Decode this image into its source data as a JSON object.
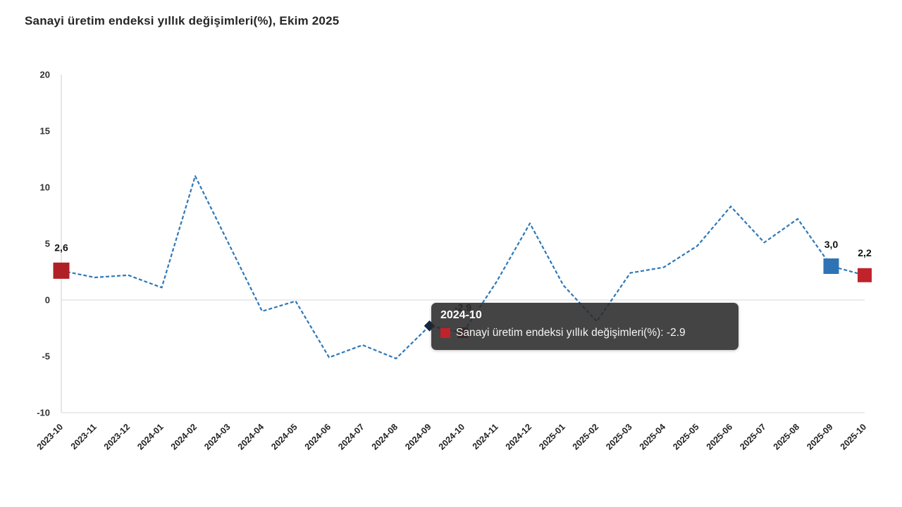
{
  "page": {
    "title": "Sanayi üretim endeksi yıllık değişimleri(%), Ekim 2025"
  },
  "colors": {
    "line_blue": "#2e78b8",
    "marker_blue": "#2e74b5",
    "marker_red": "#b02127",
    "marker_red_bright": "#c0232c",
    "marker_navy": "#16293f",
    "axis_gray": "#cccccc",
    "grid_gray": "#e0e0e0",
    "label_dark": "#111111",
    "tooltip_bg": "#2a2a2a"
  },
  "tooltip": {
    "header": "2024-10",
    "series_label": "Sanayi üretim endeksi yıllık değişimleri(%)",
    "separator": ": ",
    "value": "-2.9",
    "swatch_color": "#c0232c"
  },
  "chart_data": {
    "type": "line",
    "title": "Sanayi üretim endeksi yıllık değişimleri(%), Ekim 2025",
    "series_name": "Sanayi üretim endeksi yıllık değişimleri(%)",
    "categories": [
      "2023-10",
      "2023-11",
      "2023-12",
      "2024-01",
      "2024-02",
      "2024-03",
      "2024-04",
      "2024-05",
      "2024-06",
      "2024-07",
      "2024-08",
      "2024-09",
      "2024-10",
      "2024-11",
      "2024-12",
      "2025-01",
      "2025-02",
      "2025-03",
      "2025-04",
      "2025-05",
      "2025-06",
      "2025-07",
      "2025-08",
      "2025-09",
      "2025-10"
    ],
    "values": [
      2.6,
      2.0,
      2.2,
      1.1,
      11.0,
      5.0,
      -1.0,
      -0.1,
      -5.1,
      -4.0,
      -5.2,
      -2.3,
      -2.9,
      1.6,
      6.8,
      1.3,
      -1.9,
      2.4,
      2.9,
      4.8,
      8.3,
      5.1,
      7.2,
      3.0,
      2.2
    ],
    "ylim": [
      -10,
      20
    ],
    "yticks": [
      20,
      15,
      10,
      5,
      0,
      -5,
      -10
    ],
    "xlabel": "",
    "ylabel": "",
    "grid": "zero line and bottom border only",
    "line_style": "dashed",
    "legend_position": "none (tooltip shown for 2024-10)",
    "point_labels": [
      {
        "index": 0,
        "text": "2,6",
        "dy": -28
      },
      {
        "index": 12,
        "text": "-2,9",
        "dy": -31
      },
      {
        "index": 23,
        "text": "3,0",
        "dy": -26
      },
      {
        "index": 24,
        "text": "2,2",
        "dy": -27
      }
    ],
    "markers": [
      {
        "index": 0,
        "shape": "square",
        "size": 23,
        "color": "#b02127"
      },
      {
        "index": 11,
        "shape": "diamond",
        "size": 11,
        "color": "#16293f"
      },
      {
        "index": 12,
        "shape": "square",
        "size": 15,
        "color": "#a5181e"
      },
      {
        "index": 23,
        "shape": "square",
        "size": 22,
        "color": "#2e74b5"
      },
      {
        "index": 24,
        "shape": "square",
        "size": 20,
        "color": "#c0232c"
      }
    ]
  }
}
